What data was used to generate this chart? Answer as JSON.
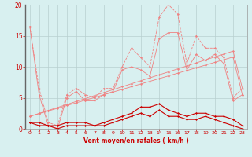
{
  "x": [
    0,
    1,
    2,
    3,
    4,
    5,
    6,
    7,
    8,
    9,
    10,
    11,
    12,
    13,
    14,
    15,
    16,
    17,
    18,
    19,
    20,
    21,
    22,
    23
  ],
  "series_rafales_dashed": [
    16.5,
    6.5,
    1.0,
    0.5,
    5.5,
    6.5,
    5.5,
    5.0,
    6.5,
    6.5,
    10.0,
    13.0,
    11.5,
    10.0,
    18.0,
    20.0,
    18.5,
    10.5,
    15.0,
    13.0,
    13.0,
    11.5,
    5.0,
    6.5
  ],
  "series_moyen_solid": [
    16.5,
    5.5,
    0.5,
    0.0,
    5.0,
    6.0,
    4.5,
    4.5,
    5.5,
    6.0,
    9.5,
    10.0,
    9.5,
    8.5,
    14.5,
    15.5,
    15.5,
    9.5,
    12.0,
    11.0,
    12.0,
    10.5,
    4.5,
    5.5
  ],
  "series_linear1": [
    2.0,
    2.48,
    2.96,
    3.43,
    3.91,
    4.39,
    4.87,
    5.35,
    5.83,
    6.3,
    6.78,
    7.26,
    7.74,
    8.22,
    8.7,
    9.17,
    9.65,
    10.13,
    10.61,
    11.09,
    11.57,
    12.04,
    12.52,
    6.5
  ],
  "series_linear2": [
    2.0,
    2.43,
    2.87,
    3.3,
    3.74,
    4.17,
    4.61,
    5.04,
    5.48,
    5.91,
    6.35,
    6.78,
    7.22,
    7.65,
    8.09,
    8.52,
    8.96,
    9.39,
    9.83,
    10.26,
    10.7,
    11.13,
    11.57,
    5.5
  ],
  "series_bottom1": [
    1.0,
    1.0,
    0.5,
    0.5,
    1.0,
    1.0,
    1.0,
    0.5,
    1.0,
    1.5,
    2.0,
    2.5,
    3.5,
    3.5,
    4.0,
    3.0,
    2.5,
    2.0,
    2.5,
    2.5,
    2.0,
    2.0,
    1.5,
    0.5
  ],
  "series_bottom2": [
    1.0,
    0.5,
    0.5,
    0.0,
    0.5,
    0.5,
    0.5,
    0.5,
    0.5,
    1.0,
    1.5,
    2.0,
    2.5,
    2.0,
    3.0,
    2.0,
    2.0,
    1.5,
    1.5,
    2.0,
    1.5,
    1.0,
    0.5,
    0.0
  ],
  "color_light": "#f08080",
  "color_dark": "#cc0000",
  "bg_color": "#d8f0f0",
  "grid_color": "#b8d0d0",
  "xlabel": "Vent moyen/en rafales ( km/h )",
  "ylim": [
    0,
    20
  ],
  "yticks": [
    0,
    5,
    10,
    15,
    20
  ],
  "xticks": [
    0,
    1,
    2,
    3,
    4,
    5,
    6,
    7,
    8,
    9,
    10,
    11,
    12,
    13,
    14,
    15,
    16,
    17,
    18,
    19,
    20,
    21,
    22,
    23
  ]
}
